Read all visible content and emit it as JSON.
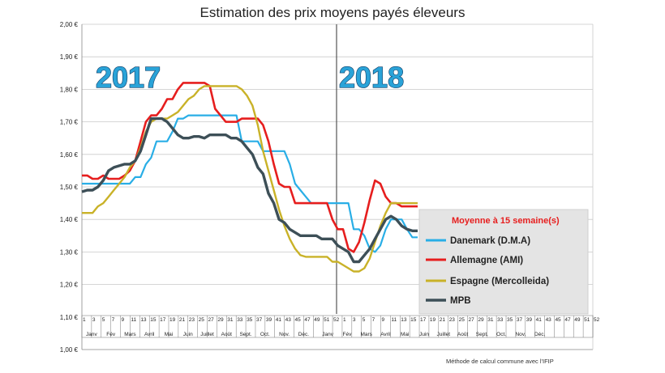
{
  "chart_data": {
    "type": "line",
    "title": "Estimation des prix moyens payés éleveurs",
    "y_tick_labels": [
      "2,00 €",
      "1,90 €",
      "1,80 €",
      "1,70 €",
      "1,60 €",
      "1,50 €",
      "1,40 €",
      "1,30 €",
      "1,20 €",
      "1,10 €",
      "1,00 €"
    ],
    "ylim": [
      1.0,
      2.0
    ],
    "x_week_labels": [
      "1",
      "3",
      "5",
      "7",
      "9",
      "11",
      "13",
      "15",
      "17",
      "19",
      "21",
      "23",
      "25",
      "27",
      "29",
      "31",
      "33",
      "35",
      "37",
      "39",
      "41",
      "43",
      "45",
      "47",
      "49",
      "51",
      "52",
      "1",
      "3",
      "5",
      "7",
      "9",
      "11",
      "13",
      "15",
      "17",
      "19",
      "21",
      "23",
      "25",
      "27",
      "29",
      "31",
      "33",
      "35",
      "37",
      "39",
      "41",
      "43",
      "45",
      "47",
      "49",
      "51",
      "52"
    ],
    "x_month_labels": [
      "Janv",
      "Fév",
      "Mars",
      "Avril",
      "Mai",
      "Juin",
      "Juillet",
      "Août",
      "Sept.",
      "Oct.",
      "Nov.",
      "Déc.",
      "Janv",
      "Fév",
      "Mars",
      "Avril",
      "Mai",
      "Juin",
      "Juillet",
      "Août",
      "Sept.",
      "Oct.",
      "Nov.",
      "Déc."
    ],
    "annotations": [
      "2017",
      "2018"
    ],
    "legend_title": "Moyenne à  15 semaine(s)",
    "footnote": "Méthode de calcul commune avec l'IFIP",
    "series": [
      {
        "name": "Danemark (D.M.A)",
        "color": "#29aee6",
        "values": [
          1.51,
          1.51,
          1.51,
          1.51,
          1.51,
          1.51,
          1.51,
          1.51,
          1.51,
          1.51,
          1.53,
          1.53,
          1.57,
          1.59,
          1.64,
          1.64,
          1.64,
          1.67,
          1.71,
          1.71,
          1.72,
          1.72,
          1.72,
          1.72,
          1.72,
          1.72,
          1.72,
          1.72,
          1.72,
          1.72,
          1.64,
          1.64,
          1.64,
          1.64,
          1.61,
          1.61,
          1.61,
          1.61,
          1.61,
          1.57,
          1.51,
          1.49,
          1.47,
          1.45,
          1.45,
          1.45,
          1.45,
          1.45,
          1.45,
          1.45,
          1.45,
          1.37,
          1.37,
          1.35,
          1.31,
          1.3,
          1.32,
          1.37,
          1.4,
          1.4,
          1.4,
          1.37,
          1.345,
          1.345
        ]
      },
      {
        "name": "Allemagne (AMI)",
        "color": "#e61e1e",
        "values": [
          1.535,
          1.535,
          1.525,
          1.525,
          1.535,
          1.525,
          1.525,
          1.525,
          1.535,
          1.55,
          1.58,
          1.64,
          1.7,
          1.72,
          1.72,
          1.74,
          1.77,
          1.77,
          1.8,
          1.82,
          1.82,
          1.82,
          1.82,
          1.82,
          1.81,
          1.74,
          1.72,
          1.7,
          1.7,
          1.7,
          1.71,
          1.71,
          1.71,
          1.71,
          1.69,
          1.64,
          1.57,
          1.51,
          1.5,
          1.5,
          1.45,
          1.45,
          1.45,
          1.45,
          1.45,
          1.45,
          1.45,
          1.4,
          1.37,
          1.37,
          1.31,
          1.3,
          1.33,
          1.39,
          1.46,
          1.52,
          1.51,
          1.47,
          1.45,
          1.45,
          1.44,
          1.44,
          1.44,
          1.44
        ]
      },
      {
        "name": "Espagne (Mercolleida)",
        "color": "#c9b228",
        "values": [
          1.42,
          1.42,
          1.42,
          1.44,
          1.45,
          1.47,
          1.49,
          1.51,
          1.53,
          1.56,
          1.58,
          1.62,
          1.67,
          1.7,
          1.71,
          1.71,
          1.71,
          1.72,
          1.73,
          1.75,
          1.77,
          1.78,
          1.8,
          1.81,
          1.81,
          1.81,
          1.81,
          1.81,
          1.81,
          1.81,
          1.8,
          1.78,
          1.75,
          1.69,
          1.61,
          1.55,
          1.49,
          1.43,
          1.38,
          1.34,
          1.31,
          1.29,
          1.285,
          1.285,
          1.285,
          1.285,
          1.285,
          1.27,
          1.27,
          1.26,
          1.25,
          1.24,
          1.24,
          1.25,
          1.28,
          1.33,
          1.38,
          1.42,
          1.45,
          1.45,
          1.45,
          1.45,
          1.45,
          1.45
        ]
      },
      {
        "name": "MPB",
        "color": "#3d4f57",
        "values": [
          1.485,
          1.49,
          1.49,
          1.5,
          1.52,
          1.55,
          1.56,
          1.565,
          1.57,
          1.57,
          1.58,
          1.61,
          1.66,
          1.71,
          1.71,
          1.71,
          1.7,
          1.68,
          1.66,
          1.65,
          1.65,
          1.655,
          1.655,
          1.65,
          1.66,
          1.66,
          1.66,
          1.66,
          1.65,
          1.65,
          1.64,
          1.62,
          1.6,
          1.56,
          1.54,
          1.48,
          1.45,
          1.4,
          1.39,
          1.37,
          1.36,
          1.35,
          1.35,
          1.35,
          1.35,
          1.34,
          1.34,
          1.34,
          1.32,
          1.31,
          1.3,
          1.27,
          1.27,
          1.29,
          1.31,
          1.34,
          1.37,
          1.4,
          1.41,
          1.4,
          1.38,
          1.37,
          1.365,
          1.365
        ]
      }
    ]
  }
}
